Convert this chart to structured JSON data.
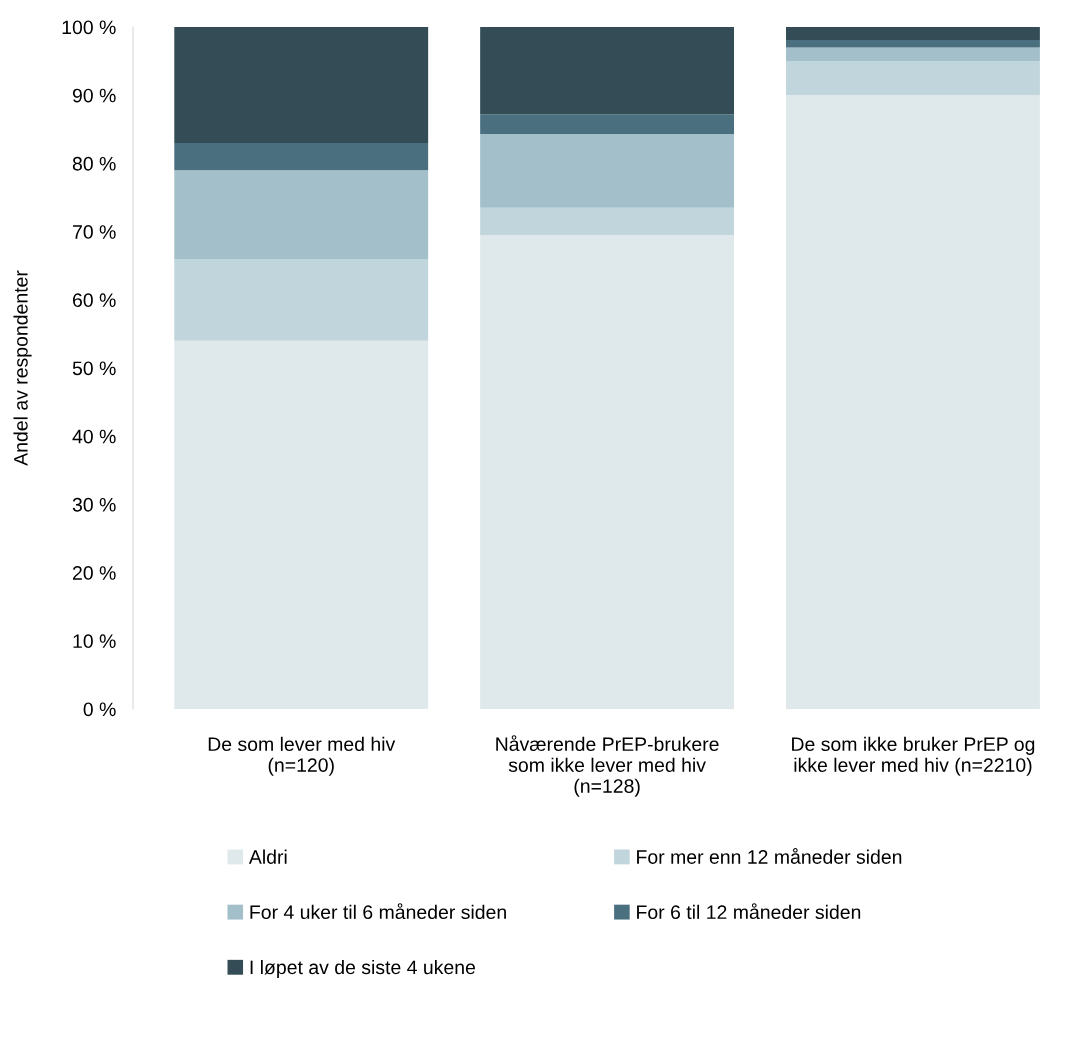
{
  "chart_data": {
    "type": "bar",
    "stacked": true,
    "ylabel": "Andel av respondenter",
    "categories": [
      "De som lever med hiv\n(n=120)",
      "Nåværende PrEP-brukere\nsom ikke lever med hiv\n(n=128)",
      "De som ikke bruker PrEP og\nikke lever med hiv (n=2210)"
    ],
    "series": [
      {
        "name": "Aldri",
        "color": "#dfe8eb",
        "values": [
          54,
          69.5,
          90
        ]
      },
      {
        "name": "For mer enn 12 måneder siden",
        "color": "#c1d5dc",
        "values": [
          12,
          4.0,
          5
        ]
      },
      {
        "name": "For 4 uker til 6 måneder siden",
        "color": "#a3bfca",
        "values": [
          13,
          10.8,
          2
        ]
      },
      {
        "name": "For 6 til 12 måneder siden",
        "color": "#4a7080",
        "values": [
          4,
          2.9,
          1.1
        ]
      },
      {
        "name": "I løpet av de siste 4 ukene",
        "color": "#334c56",
        "values": [
          17,
          12.8,
          1.9
        ]
      }
    ],
    "ylim": [
      0,
      100
    ],
    "yticks": [
      {
        "value": 0,
        "label": "0 %"
      },
      {
        "value": 10,
        "label": "10 %"
      },
      {
        "value": 20,
        "label": "20 %"
      },
      {
        "value": 30,
        "label": "30 %"
      },
      {
        "value": 40,
        "label": "40 %"
      },
      {
        "value": 50,
        "label": "50 %"
      },
      {
        "value": 60,
        "label": "60 %"
      },
      {
        "value": 70,
        "label": "70 %"
      },
      {
        "value": 80,
        "label": "80 %"
      },
      {
        "value": 90,
        "label": "90 %"
      },
      {
        "value": 100,
        "label": "100 %"
      }
    ],
    "grid": false,
    "legend": "bottom"
  }
}
